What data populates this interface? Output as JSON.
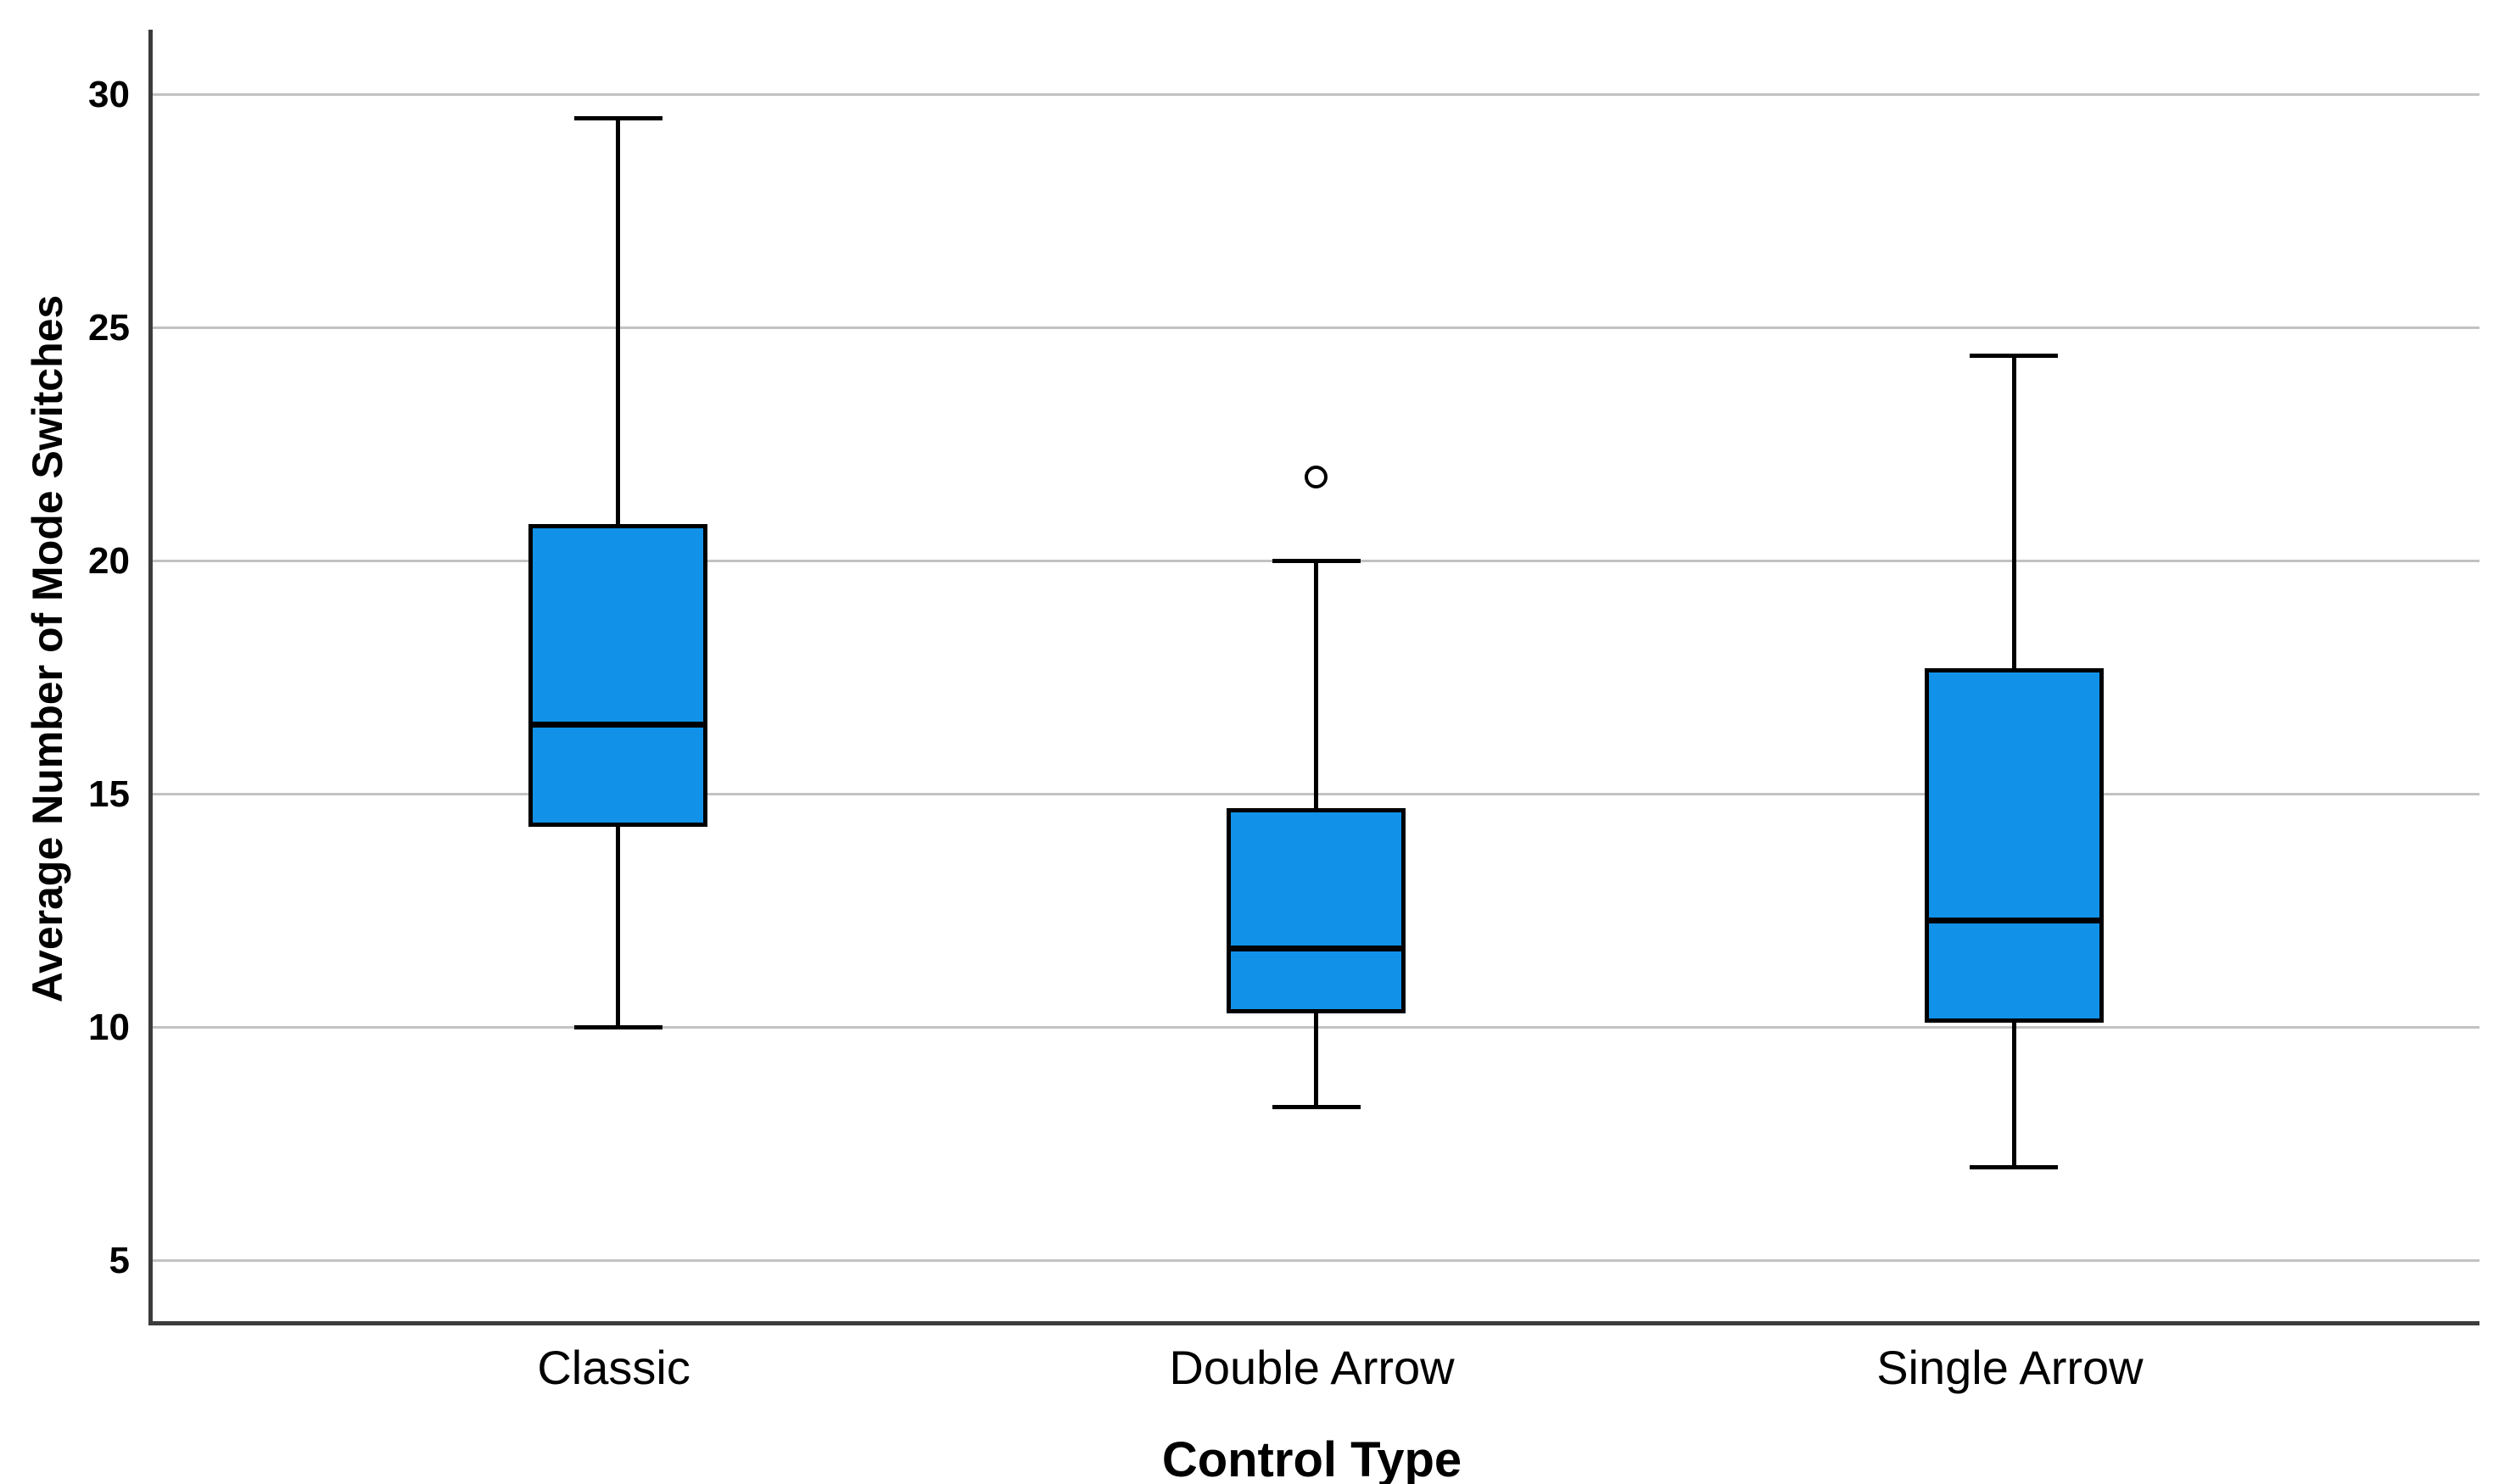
{
  "chart_data": {
    "type": "boxplot",
    "title": "",
    "xlabel": "Control Type",
    "ylabel": "Average Number of Mode Switches",
    "categories": [
      "Classic",
      "Double Arrow",
      "Single Arrow"
    ],
    "yticks": [
      5,
      10,
      15,
      20,
      25,
      30
    ],
    "ylim": [
      3.7,
      31.4
    ],
    "grid": "horizontal-gridlines-only",
    "legend": "none",
    "boxes": [
      {
        "category": "Classic",
        "whisker_low": 10.0,
        "q1": 14.3,
        "median": 16.5,
        "q3": 20.8,
        "whisker_high": 29.5,
        "outliers": []
      },
      {
        "category": "Double Arrow",
        "whisker_low": 8.3,
        "q1": 10.3,
        "median": 11.7,
        "q3": 14.7,
        "whisker_high": 20.0,
        "outliers": [
          21.8
        ]
      },
      {
        "category": "Single Arrow",
        "whisker_low": 7.0,
        "q1": 10.1,
        "median": 12.3,
        "q3": 17.7,
        "whisker_high": 24.4,
        "outliers": []
      }
    ],
    "colors": {
      "box_fill": "#1192E8",
      "box_border": "#000000",
      "median": "#000000",
      "whisker": "#000000",
      "outlier_stroke": "#000000",
      "gridline": "#C2C2C2",
      "axis": "#3C3C3C",
      "background": "#FFFFFF",
      "text": "#000000"
    }
  }
}
